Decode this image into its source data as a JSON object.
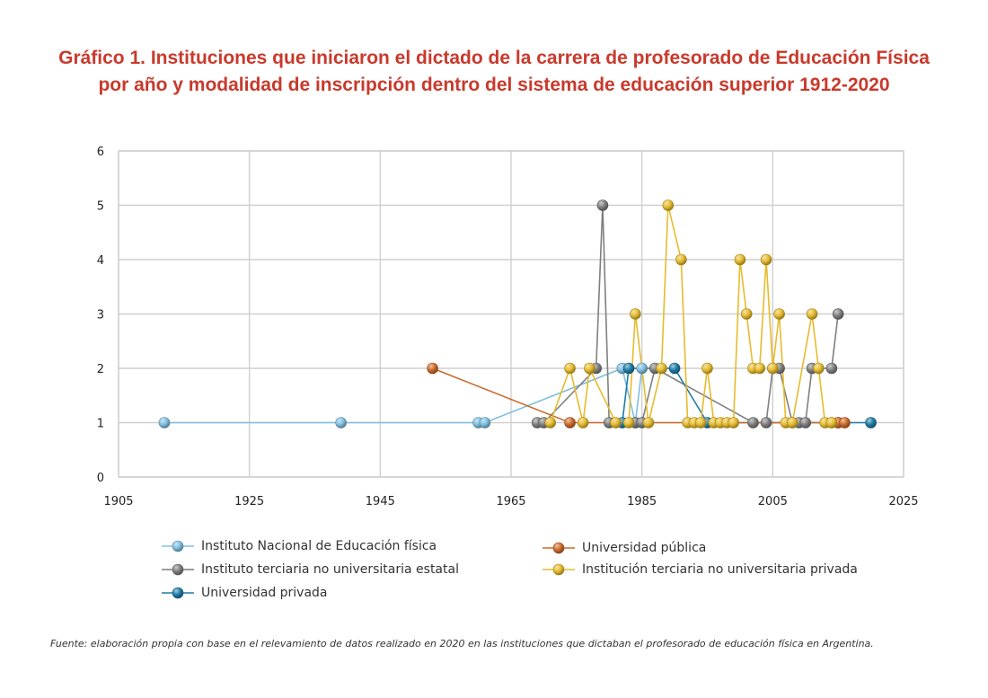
{
  "title": {
    "line1": "Gráfico 1. Instituciones que iniciaron el dictado de la carrera de profesorado de Educación Física",
    "line2": "por año y modalidad de inscripción dentro del sistema de educación superior 1912-2020"
  },
  "source": "Fuente: elaboración propia con base en el relevamiento de datos realizado en 2020 en las instituciones que dictaban el profesorado de educación física en Argentina.",
  "legend": [
    {
      "label": "Instituto Nacional de Educación física",
      "color": "#7fbfe0"
    },
    {
      "label": "Universidad pública",
      "color": "#cc6a2a"
    },
    {
      "label": "Instituto terciaria no universitaria estatal",
      "color": "#7f7f7f"
    },
    {
      "label": "Institución terciaria no universitaria privada",
      "color": "#e6bb2e"
    },
    {
      "label": "Universidad privada",
      "color": "#1f7ca6"
    }
  ],
  "chart_data": {
    "type": "line",
    "title": "Gráfico 1. Instituciones que iniciaron el dictado de la carrera de profesorado de Educación Física por año y modalidad de inscripción dentro del sistema de educación superior 1912-2020",
    "xlabel": "",
    "ylabel": "",
    "xlim": [
      1905,
      2025
    ],
    "ylim": [
      0,
      6
    ],
    "xticks": [
      1905,
      1925,
      1945,
      1965,
      1985,
      2005,
      2025
    ],
    "yticks": [
      0,
      1,
      2,
      3,
      4,
      5,
      6
    ],
    "grid": true,
    "legend_position": "bottom",
    "series": [
      {
        "name": "Instituto Nacional de Educación física",
        "color": "#7fbfe0",
        "points": [
          [
            1912,
            1
          ],
          [
            1939,
            1
          ],
          [
            1960,
            1
          ],
          [
            1961,
            1
          ],
          [
            1982,
            2
          ],
          [
            1984,
            1
          ],
          [
            1985,
            2
          ]
        ]
      },
      {
        "name": "Instituto terciaria no universitaria estatal",
        "color": "#7f7f7f",
        "points": [
          [
            1969,
            1
          ],
          [
            1970,
            1
          ],
          [
            1978,
            2
          ],
          [
            1979,
            5
          ],
          [
            1980,
            1
          ],
          [
            1984,
            1
          ],
          [
            1985,
            1
          ],
          [
            1987,
            2
          ],
          [
            2002,
            1
          ],
          [
            2004,
            1
          ],
          [
            2005,
            2
          ],
          [
            2006,
            2
          ],
          [
            2008,
            1
          ],
          [
            2009,
            1
          ],
          [
            2010,
            1
          ],
          [
            2011,
            2
          ],
          [
            2014,
            2
          ],
          [
            2015,
            3
          ]
        ]
      },
      {
        "name": "Universidad privada",
        "color": "#1f7ca6",
        "points": [
          [
            1982,
            1
          ],
          [
            1983,
            2
          ],
          [
            1990,
            2
          ],
          [
            1995,
            1
          ],
          [
            2015,
            1
          ],
          [
            2020,
            1
          ]
        ]
      },
      {
        "name": "Universidad pública",
        "color": "#cc6a2a",
        "points": [
          [
            1953,
            2
          ],
          [
            1974,
            1
          ],
          [
            2015,
            1
          ],
          [
            2016,
            1
          ]
        ]
      },
      {
        "name": "Institución terciaria no universitaria privada",
        "color": "#e6bb2e",
        "points": [
          [
            1971,
            1
          ],
          [
            1974,
            2
          ],
          [
            1976,
            1
          ],
          [
            1977,
            2
          ],
          [
            1981,
            1
          ],
          [
            1983,
            1
          ],
          [
            1984,
            3
          ],
          [
            1986,
            1
          ],
          [
            1988,
            2
          ],
          [
            1989,
            5
          ],
          [
            1991,
            4
          ],
          [
            1992,
            1
          ],
          [
            1993,
            1
          ],
          [
            1994,
            1
          ],
          [
            1995,
            2
          ],
          [
            1996,
            1
          ],
          [
            1997,
            1
          ],
          [
            1998,
            1
          ],
          [
            1999,
            1
          ],
          [
            2000,
            4
          ],
          [
            2001,
            3
          ],
          [
            2002,
            2
          ],
          [
            2003,
            2
          ],
          [
            2004,
            4
          ],
          [
            2005,
            2
          ],
          [
            2006,
            3
          ],
          [
            2007,
            1
          ],
          [
            2008,
            1
          ],
          [
            2011,
            3
          ],
          [
            2012,
            2
          ],
          [
            2013,
            1
          ],
          [
            2014,
            1
          ],
          [
            2014,
            1
          ]
        ]
      }
    ]
  }
}
